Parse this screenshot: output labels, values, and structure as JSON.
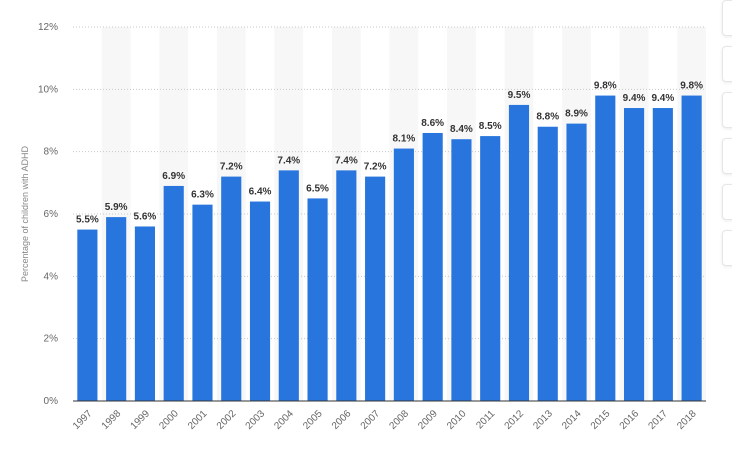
{
  "chart_data": {
    "type": "bar",
    "categories": [
      "1997",
      "1998",
      "1999",
      "2000",
      "2001",
      "2002",
      "2003",
      "2004",
      "2005",
      "2006",
      "2007",
      "2008",
      "2009",
      "2010",
      "2011",
      "2012",
      "2013",
      "2014",
      "2015",
      "2016",
      "2017",
      "2018"
    ],
    "values": [
      5.5,
      5.9,
      5.6,
      6.9,
      6.3,
      7.2,
      6.4,
      7.4,
      6.5,
      7.4,
      7.2,
      8.1,
      8.6,
      8.4,
      8.5,
      9.5,
      8.8,
      8.9,
      9.8,
      9.4,
      9.4,
      9.8
    ],
    "data_labels": [
      "5.5%",
      "5.9%",
      "5.6%",
      "6.9%",
      "6.3%",
      "7.2%",
      "6.4%",
      "7.4%",
      "6.5%",
      "7.4%",
      "7.2%",
      "8.1%",
      "8.6%",
      "8.4%",
      "8.5%",
      "9.5%",
      "8.8%",
      "8.9%",
      "9.8%",
      "9.4%",
      "9.4%",
      "9.8%"
    ],
    "ylabel": "Percentage of children with ADHD",
    "ylim": [
      0,
      12
    ],
    "y_ticks": [
      0,
      2,
      4,
      6,
      8,
      10,
      12
    ],
    "y_tick_labels": [
      "0%",
      "2%",
      "4%",
      "6%",
      "8%",
      "10%",
      "12%"
    ],
    "grid": true,
    "bar_color": "#2876dd",
    "band_color": "#f7f7f7"
  },
  "side_panel": {
    "button_count": 6
  }
}
